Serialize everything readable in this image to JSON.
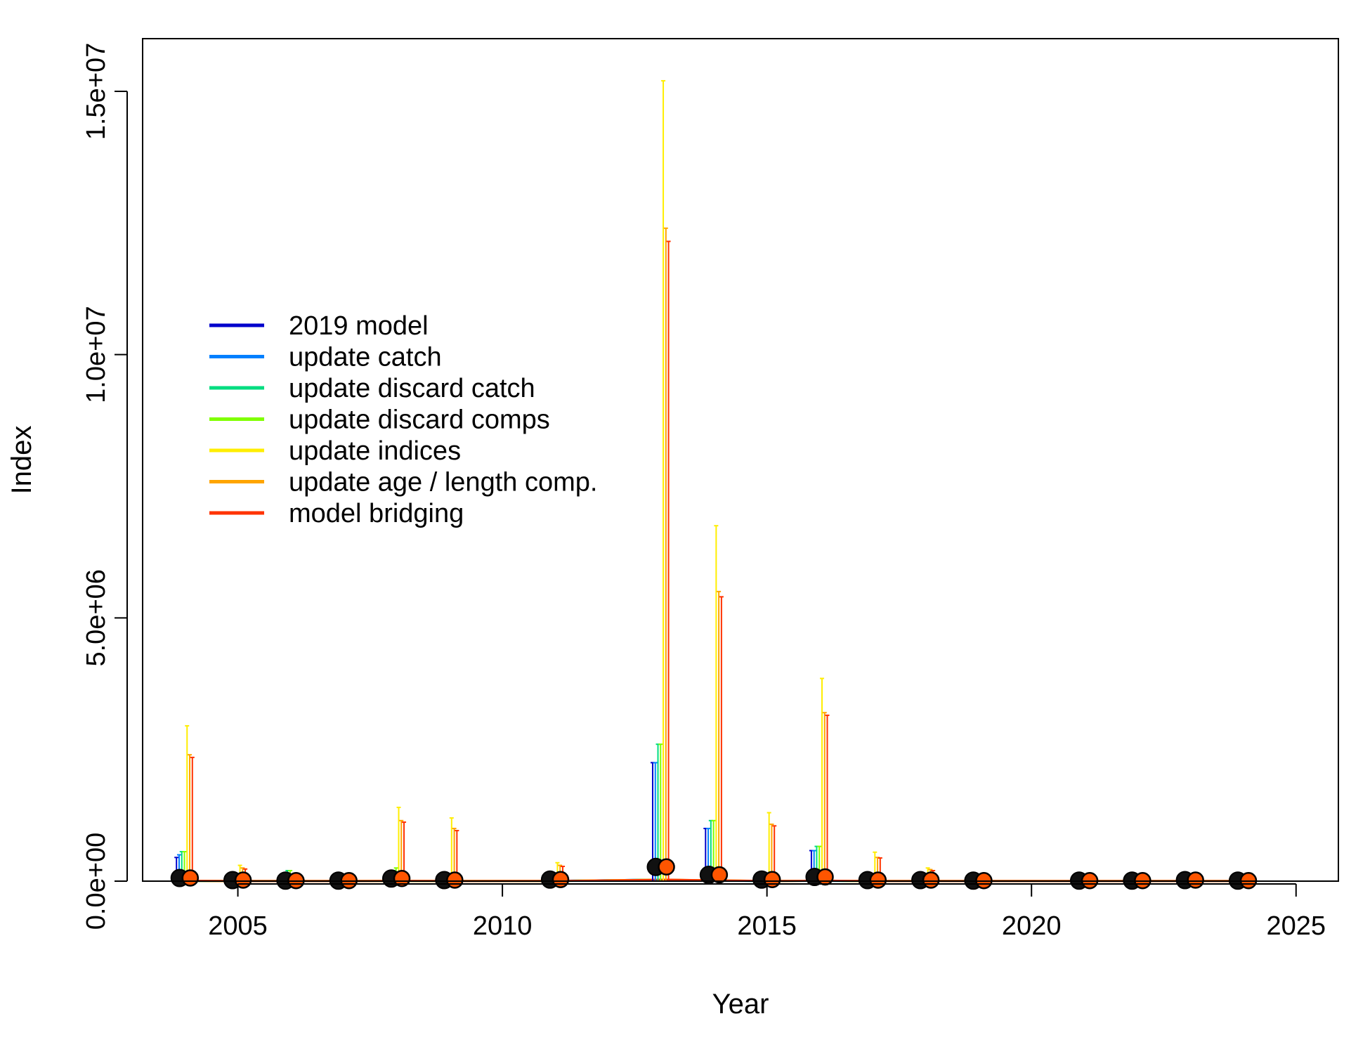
{
  "chart_data": {
    "type": "scatter",
    "xlabel": "Year",
    "ylabel": "Index",
    "xlim": [
      2003.2,
      2025.8
    ],
    "ylim": [
      0,
      16000000
    ],
    "x_ticks": [
      {
        "value": 2005,
        "label": "2005"
      },
      {
        "value": 2010,
        "label": "2010"
      },
      {
        "value": 2015,
        "label": "2015"
      },
      {
        "value": 2020,
        "label": "2020"
      },
      {
        "value": 2025,
        "label": "2025"
      }
    ],
    "y_ticks": [
      {
        "value": 0,
        "label": "0.0e+00"
      },
      {
        "value": 5000000,
        "label": "5.0e+06"
      },
      {
        "value": 10000000,
        "label": "1.0e+07"
      },
      {
        "value": 15000000,
        "label": "1.5e+07"
      }
    ],
    "legend_position": "top-left",
    "series": [
      {
        "name": "2019 model",
        "color": "#0000CC",
        "offset": -0.16
      },
      {
        "name": "update catch",
        "color": "#0080FF",
        "offset": -0.11
      },
      {
        "name": "update discard catch",
        "color": "#00DD80",
        "offset": -0.06
      },
      {
        "name": "update discard comps",
        "color": "#80FF00",
        "offset": -0.01
      },
      {
        "name": "update indices",
        "color": "#FFEE00",
        "offset": 0.04
      },
      {
        "name": "update age / length comp.",
        "color": "#FFA500",
        "offset": 0.09
      },
      {
        "name": "model bridging",
        "color": "#FF3300",
        "offset": 0.14
      }
    ],
    "points": [
      {
        "year": 2004,
        "index": 60000,
        "upper": [
          450000,
          500000,
          560000,
          560000,
          2950000,
          2400000,
          2350000
        ]
      },
      {
        "year": 2005,
        "index": 20000,
        "upper": [
          null,
          null,
          null,
          null,
          300000,
          250000,
          230000
        ]
      },
      {
        "year": 2006,
        "index": 10000,
        "upper": [
          null,
          150000,
          200000,
          200000,
          null,
          null,
          null
        ]
      },
      {
        "year": 2007,
        "index": 10000,
        "upper": [
          null,
          null,
          null,
          null,
          null,
          null,
          null
        ]
      },
      {
        "year": 2008,
        "index": 50000,
        "upper": [
          null,
          null,
          200000,
          250000,
          1400000,
          1150000,
          1120000
        ]
      },
      {
        "year": 2009,
        "index": 20000,
        "upper": [
          null,
          null,
          null,
          null,
          1200000,
          1000000,
          960000
        ]
      },
      {
        "year": 2011,
        "index": 30000,
        "upper": [
          null,
          null,
          null,
          null,
          350000,
          300000,
          280000
        ]
      },
      {
        "year": 2013,
        "index": 270000,
        "upper": [
          2250000,
          2250000,
          2600000,
          2600000,
          15200000,
          12400000,
          12150000
        ]
      },
      {
        "year": 2014,
        "index": 120000,
        "upper": [
          1000000,
          1000000,
          1150000,
          1150000,
          6750000,
          5500000,
          5400000
        ]
      },
      {
        "year": 2015,
        "index": 30000,
        "upper": [
          null,
          null,
          null,
          null,
          1300000,
          1080000,
          1050000
        ]
      },
      {
        "year": 2016,
        "index": 80000,
        "upper": [
          580000,
          580000,
          660000,
          660000,
          3850000,
          3200000,
          3150000
        ]
      },
      {
        "year": 2017,
        "index": 20000,
        "upper": [
          null,
          null,
          null,
          null,
          550000,
          450000,
          440000
        ]
      },
      {
        "year": 2018,
        "index": 20000,
        "upper": [
          null,
          null,
          null,
          null,
          250000,
          220000,
          200000
        ]
      },
      {
        "year": 2019,
        "index": 10000,
        "upper": [
          null,
          null,
          null,
          null,
          null,
          null,
          null
        ]
      },
      {
        "year": 2021,
        "index": 10000,
        "upper": [
          null,
          null,
          null,
          null,
          null,
          null,
          null
        ]
      },
      {
        "year": 2022,
        "index": 10000,
        "upper": [
          null,
          null,
          null,
          null,
          null,
          null,
          null
        ]
      },
      {
        "year": 2023,
        "index": 20000,
        "upper": [
          null,
          null,
          null,
          null,
          null,
          null,
          null
        ]
      },
      {
        "year": 2024,
        "index": 10000,
        "upper": [
          null,
          null,
          null,
          null,
          null,
          null,
          null
        ]
      }
    ]
  }
}
